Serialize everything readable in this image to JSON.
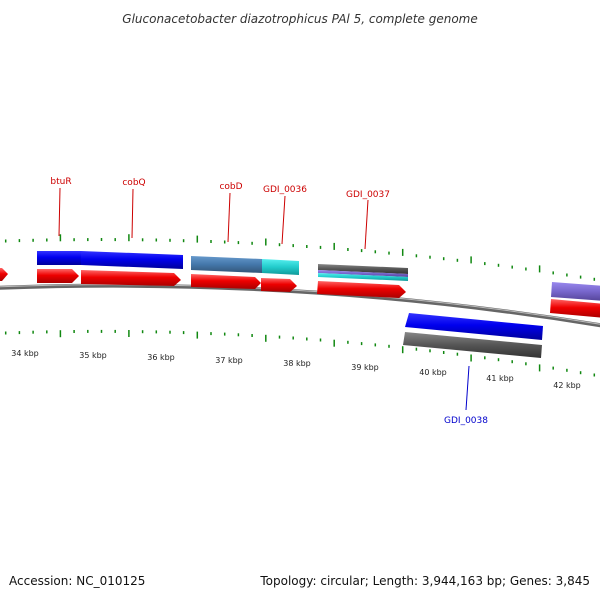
{
  "title": "Gluconacetobacter diazotrophicus PAl 5, complete genome",
  "colors": {
    "forward_cds": "#ee0000",
    "blue_feature": "#0000ee",
    "steel_feature": "#4477aa",
    "cyan_feature": "#22cccc",
    "purple_feature": "#7766cc",
    "gray_feature": "#555555",
    "axis_tick": "#118811",
    "label_forward": "#cc0000",
    "label_reverse": "#0000cc"
  },
  "gene_labels": [
    "btuR",
    "cobQ",
    "cobD",
    "GDI_0036",
    "GDI_0037",
    "GDI_0038"
  ],
  "kbp_labels": [
    "34 kbp",
    "35 kbp",
    "36 kbp",
    "37 kbp",
    "38 kbp",
    "39 kbp",
    "40 kbp",
    "41 kbp",
    "42 kbp"
  ],
  "footer": {
    "accession": "Accession: NC_010125",
    "summary": "Topology: circular; Length: 3,944,163 bp; Genes: 3,845"
  }
}
